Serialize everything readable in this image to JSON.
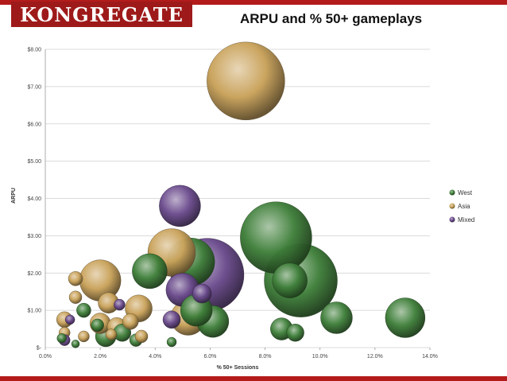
{
  "header": {
    "logo_text": "KONGREGATE"
  },
  "colors": {
    "brand_red": "#9e1a1a",
    "West": "#3f7f3a",
    "Asia": "#c9a25a",
    "Mixed": "#6a4a8c"
  },
  "chart_data": {
    "type": "scatter",
    "title": "ARPU and % 50+ gameplays",
    "xlabel": "% 50+ Sessions",
    "ylabel": "ARPU",
    "xlim": [
      0,
      14
    ],
    "ylim": [
      0,
      8
    ],
    "x_ticks": [
      0,
      2,
      4,
      6,
      8,
      10,
      12,
      14
    ],
    "x_tick_labels": [
      "0.0%",
      "2.0%",
      "4.0%",
      "6.0%",
      "8.0%",
      "10.0%",
      "12.0%",
      "14.0%"
    ],
    "y_ticks": [
      0,
      1,
      2,
      3,
      4,
      5,
      6,
      7,
      8
    ],
    "y_tick_labels": [
      "$-",
      "$1.00",
      "$2.00",
      "$3.00",
      "$4.00",
      "$5.00",
      "$6.00",
      "$7.00",
      "$8.00"
    ],
    "grid": "horizontal",
    "legend": "right",
    "series": [
      {
        "name": "West",
        "points": [
          {
            "x": 8.4,
            "y": 2.95,
            "r": 45
          },
          {
            "x": 9.3,
            "y": 1.8,
            "r": 46
          },
          {
            "x": 8.9,
            "y": 1.8,
            "r": 22
          },
          {
            "x": 10.6,
            "y": 0.8,
            "r": 20
          },
          {
            "x": 13.1,
            "y": 0.8,
            "r": 25
          },
          {
            "x": 8.6,
            "y": 0.5,
            "r": 14
          },
          {
            "x": 9.1,
            "y": 0.4,
            "r": 11
          },
          {
            "x": 6.1,
            "y": 0.7,
            "r": 20
          },
          {
            "x": 5.5,
            "y": 1.0,
            "r": 20
          },
          {
            "x": 3.8,
            "y": 2.05,
            "r": 22
          },
          {
            "x": 5.3,
            "y": 2.3,
            "r": 30
          },
          {
            "x": 1.4,
            "y": 1.0,
            "r": 9
          },
          {
            "x": 2.2,
            "y": 0.3,
            "r": 13
          },
          {
            "x": 2.8,
            "y": 0.4,
            "r": 11
          },
          {
            "x": 3.3,
            "y": 0.2,
            "r": 8
          },
          {
            "x": 0.6,
            "y": 0.25,
            "r": 6
          },
          {
            "x": 4.6,
            "y": 0.15,
            "r": 6
          },
          {
            "x": 1.1,
            "y": 0.1,
            "r": 5
          },
          {
            "x": 1.9,
            "y": 0.6,
            "r": 8
          }
        ]
      },
      {
        "name": "Asia",
        "points": [
          {
            "x": 7.3,
            "y": 7.15,
            "r": 49
          },
          {
            "x": 4.6,
            "y": 2.55,
            "r": 30
          },
          {
            "x": 5.2,
            "y": 0.8,
            "r": 22
          },
          {
            "x": 2.0,
            "y": 1.8,
            "r": 26
          },
          {
            "x": 3.4,
            "y": 1.05,
            "r": 17
          },
          {
            "x": 2.3,
            "y": 1.2,
            "r": 13
          },
          {
            "x": 1.1,
            "y": 1.85,
            "r": 9
          },
          {
            "x": 1.1,
            "y": 1.35,
            "r": 8
          },
          {
            "x": 0.7,
            "y": 0.75,
            "r": 10
          },
          {
            "x": 2.0,
            "y": 0.65,
            "r": 13
          },
          {
            "x": 2.6,
            "y": 0.55,
            "r": 12
          },
          {
            "x": 3.1,
            "y": 0.7,
            "r": 10
          },
          {
            "x": 3.5,
            "y": 0.3,
            "r": 8
          },
          {
            "x": 0.7,
            "y": 0.4,
            "r": 7
          },
          {
            "x": 1.4,
            "y": 0.3,
            "r": 7
          },
          {
            "x": 2.4,
            "y": 0.35,
            "r": 7
          }
        ]
      },
      {
        "name": "Mixed",
        "points": [
          {
            "x": 5.9,
            "y": 1.95,
            "r": 46
          },
          {
            "x": 4.9,
            "y": 3.8,
            "r": 26
          },
          {
            "x": 5.0,
            "y": 1.55,
            "r": 21
          },
          {
            "x": 5.7,
            "y": 1.45,
            "r": 12
          },
          {
            "x": 4.6,
            "y": 0.75,
            "r": 11
          },
          {
            "x": 2.7,
            "y": 1.15,
            "r": 7
          },
          {
            "x": 0.9,
            "y": 0.75,
            "r": 6
          },
          {
            "x": 0.7,
            "y": 0.2,
            "r": 7
          }
        ]
      }
    ]
  }
}
